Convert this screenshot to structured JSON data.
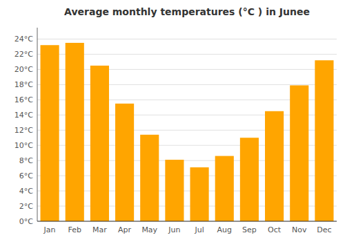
{
  "chart_data": {
    "type": "bar",
    "title": "Average monthly temperatures (°C ) in Junee",
    "categories": [
      "Jan",
      "Feb",
      "Mar",
      "Apr",
      "May",
      "Jun",
      "Jul",
      "Aug",
      "Sep",
      "Oct",
      "Nov",
      "Dec"
    ],
    "values": [
      23.2,
      23.5,
      20.5,
      15.5,
      11.4,
      8.1,
      7.1,
      8.6,
      11.0,
      14.5,
      17.9,
      21.2
    ],
    "color": "#FFA500",
    "ylim": [
      0,
      25.5
    ],
    "yticks": [
      {
        "value": 0,
        "label": "0°C"
      },
      {
        "value": 2,
        "label": "2°C"
      },
      {
        "value": 4,
        "label": "4°C"
      },
      {
        "value": 6,
        "label": "6°C"
      },
      {
        "value": 8,
        "label": "8°C"
      },
      {
        "value": 10,
        "label": "10°C"
      },
      {
        "value": 12,
        "label": "12°C"
      },
      {
        "value": 14,
        "label": "14°C"
      },
      {
        "value": 16,
        "label": "16°C"
      },
      {
        "value": 18,
        "label": "18°C"
      },
      {
        "value": 20,
        "label": "20°C"
      },
      {
        "value": 22,
        "label": "22°C"
      },
      {
        "value": 24,
        "label": "24°C"
      }
    ],
    "grid": true
  }
}
